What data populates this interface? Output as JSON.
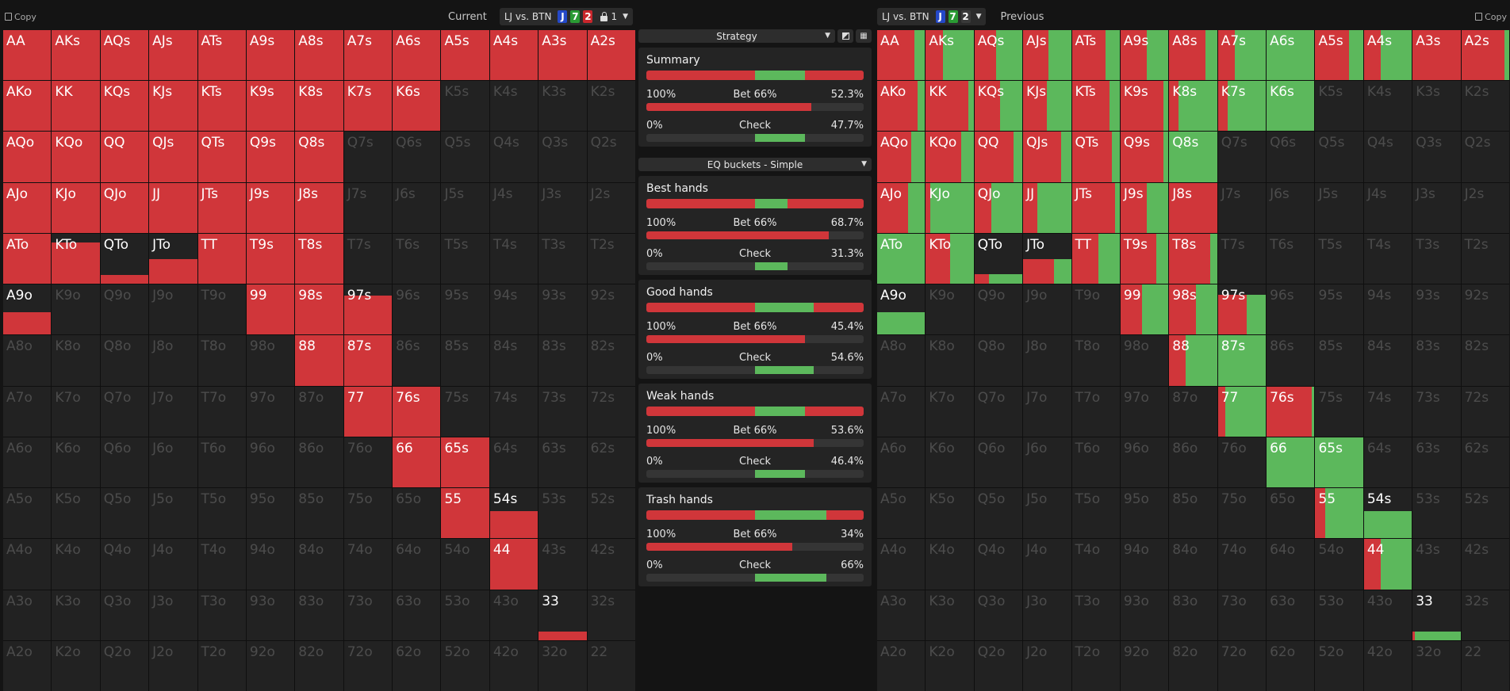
{
  "left": {
    "copy_label": "Copy",
    "mode_label": "Current",
    "spot": "LJ vs. BTN",
    "cards": [
      {
        "rank": "J",
        "color": "#2448c8"
      },
      {
        "rank": "7",
        "color": "#2a9a33"
      },
      {
        "rank": "2",
        "color": "#c8262c"
      }
    ],
    "lock_count": "1"
  },
  "right": {
    "copy_label": "Copy",
    "mode_label": "Previous",
    "spot": "LJ vs. BTN",
    "cards": [
      {
        "rank": "J",
        "color": "#2448c8"
      },
      {
        "rank": "7",
        "color": "#2a9a33"
      },
      {
        "rank": "2",
        "color": "#3a3a3a"
      }
    ]
  },
  "colors": {
    "bet": "#d0363a",
    "check": "#5cb85c",
    "empty": "#222222"
  },
  "strategy_dropdown": "Strategy",
  "buckets_dropdown": "EQ buckets - Simple",
  "panels": [
    {
      "title": "Summary",
      "stack": [
        0.5,
        0.23,
        0.27
      ],
      "bet_size": "100%",
      "bet_label": "Bet 66%",
      "bet_value": "52.3%",
      "bet_fill": 0.76,
      "check_size": "0%",
      "check_label": "Check",
      "check_value": "47.7%",
      "check_fill": [
        0.5,
        0.73
      ]
    },
    {
      "title": "Best hands",
      "stack": [
        0.5,
        0.15,
        0.35
      ],
      "bet_size": "100%",
      "bet_label": "Bet 66%",
      "bet_value": "68.7%",
      "bet_fill": 0.84,
      "check_size": "0%",
      "check_label": "Check",
      "check_value": "31.3%",
      "check_fill": [
        0.5,
        0.65
      ]
    },
    {
      "title": "Good hands",
      "stack": [
        0.5,
        0.27,
        0.23
      ],
      "bet_size": "100%",
      "bet_label": "Bet 66%",
      "bet_value": "45.4%",
      "bet_fill": 0.73,
      "check_size": "0%",
      "check_label": "Check",
      "check_value": "54.6%",
      "check_fill": [
        0.5,
        0.77
      ]
    },
    {
      "title": "Weak hands",
      "stack": [
        0.5,
        0.23,
        0.27
      ],
      "bet_size": "100%",
      "bet_label": "Bet 66%",
      "bet_value": "53.6%",
      "bet_fill": 0.77,
      "check_size": "0%",
      "check_label": "Check",
      "check_value": "46.4%",
      "check_fill": [
        0.5,
        0.73
      ]
    },
    {
      "title": "Trash hands",
      "stack": [
        0.5,
        0.33,
        0.17
      ],
      "bet_size": "100%",
      "bet_label": "Bet 66%",
      "bet_value": "34%",
      "bet_fill": 0.67,
      "check_size": "0%",
      "check_label": "Check",
      "check_value": "66%",
      "check_fill": [
        0.5,
        0.83
      ]
    }
  ],
  "hands": [
    [
      "AA",
      "AKs",
      "AQs",
      "AJs",
      "ATs",
      "A9s",
      "A8s",
      "A7s",
      "A6s",
      "A5s",
      "A4s",
      "A3s",
      "A2s"
    ],
    [
      "AKo",
      "KK",
      "KQs",
      "KJs",
      "KTs",
      "K9s",
      "K8s",
      "K7s",
      "K6s",
      "K5s",
      "K4s",
      "K3s",
      "K2s"
    ],
    [
      "AQo",
      "KQo",
      "QQ",
      "QJs",
      "QTs",
      "Q9s",
      "Q8s",
      "Q7s",
      "Q6s",
      "Q5s",
      "Q4s",
      "Q3s",
      "Q2s"
    ],
    [
      "AJo",
      "KJo",
      "QJo",
      "JJ",
      "JTs",
      "J9s",
      "J8s",
      "J7s",
      "J6s",
      "J5s",
      "J4s",
      "J3s",
      "J2s"
    ],
    [
      "ATo",
      "KTo",
      "QTo",
      "JTo",
      "TT",
      "T9s",
      "T8s",
      "T7s",
      "T6s",
      "T5s",
      "T4s",
      "T3s",
      "T2s"
    ],
    [
      "A9o",
      "K9o",
      "Q9o",
      "J9o",
      "T9o",
      "99",
      "98s",
      "97s",
      "96s",
      "95s",
      "94s",
      "93s",
      "92s"
    ],
    [
      "A8o",
      "K8o",
      "Q8o",
      "J8o",
      "T8o",
      "98o",
      "88",
      "87s",
      "86s",
      "85s",
      "84s",
      "83s",
      "82s"
    ],
    [
      "A7o",
      "K7o",
      "Q7o",
      "J7o",
      "T7o",
      "97o",
      "87o",
      "77",
      "76s",
      "75s",
      "74s",
      "73s",
      "72s"
    ],
    [
      "A6o",
      "K6o",
      "Q6o",
      "J6o",
      "T6o",
      "96o",
      "86o",
      "76o",
      "66",
      "65s",
      "64s",
      "63s",
      "62s"
    ],
    [
      "A5o",
      "K5o",
      "Q5o",
      "J5o",
      "T5o",
      "95o",
      "85o",
      "75o",
      "65o",
      "55",
      "54s",
      "53s",
      "52s"
    ],
    [
      "A4o",
      "K4o",
      "Q4o",
      "J4o",
      "T4o",
      "94o",
      "84o",
      "74o",
      "64o",
      "54o",
      "44",
      "43s",
      "42s"
    ],
    [
      "A3o",
      "K3o",
      "Q3o",
      "J3o",
      "T3o",
      "93o",
      "83o",
      "73o",
      "63o",
      "53o",
      "43o",
      "33",
      "32s"
    ],
    [
      "A2o",
      "K2o",
      "Q2o",
      "J2o",
      "T2o",
      "92o",
      "82o",
      "72o",
      "62o",
      "52o",
      "42o",
      "32o",
      "22"
    ]
  ],
  "current_height": [
    [
      1,
      1,
      1,
      1,
      1,
      1,
      1,
      1,
      1,
      1,
      1,
      1,
      1
    ],
    [
      1,
      1,
      1,
      1,
      1,
      1,
      1,
      1,
      1,
      0,
      0,
      0,
      0
    ],
    [
      1,
      1,
      1,
      1,
      1,
      1,
      1,
      0,
      0,
      0,
      0,
      0,
      0
    ],
    [
      1,
      1,
      1,
      1,
      1,
      1,
      1,
      0,
      0,
      0,
      0,
      0,
      0
    ],
    [
      1,
      0.83,
      0.17,
      0.5,
      1,
      1,
      1,
      0,
      0,
      0,
      0,
      0,
      0
    ],
    [
      0.45,
      0,
      0,
      0,
      0,
      1,
      1,
      0.78,
      0,
      0,
      0,
      0,
      0
    ],
    [
      0,
      0,
      0,
      0,
      0,
      0,
      1,
      1,
      0,
      0,
      0,
      0,
      0
    ],
    [
      0,
      0,
      0,
      0,
      0,
      0,
      0,
      1,
      1,
      0,
      0,
      0,
      0
    ],
    [
      0,
      0,
      0,
      0,
      0,
      0,
      0,
      0,
      1,
      1,
      0,
      0,
      0
    ],
    [
      0,
      0,
      0,
      0,
      0,
      0,
      0,
      0,
      0,
      1,
      0.55,
      0,
      0
    ],
    [
      0,
      0,
      0,
      0,
      0,
      0,
      0,
      0,
      0,
      0,
      1,
      0,
      0
    ],
    [
      0,
      0,
      0,
      0,
      0,
      0,
      0,
      0,
      0,
      0,
      0,
      0.17,
      0
    ],
    [
      0,
      0,
      0,
      0,
      0,
      0,
      0,
      0,
      0,
      0,
      0,
      0,
      0
    ]
  ],
  "previous_cells": [
    [
      [
        0.78,
        1
      ],
      [
        0.35,
        1
      ],
      [
        0.45,
        1
      ],
      [
        0.53,
        1
      ],
      [
        0.7,
        1
      ],
      [
        0.55,
        1
      ],
      [
        0.75,
        1
      ],
      [
        0.35,
        1
      ],
      [
        0,
        1
      ],
      [
        0.7,
        1
      ],
      [
        0.35,
        1
      ],
      [
        1,
        1
      ],
      [
        0.9,
        1
      ]
    ],
    [
      [
        0.84,
        1
      ],
      [
        0.88,
        1
      ],
      [
        0.53,
        1
      ],
      [
        0.5,
        1
      ],
      [
        0.78,
        1
      ],
      [
        0.9,
        1
      ],
      [
        0.2,
        1
      ],
      [
        0.2,
        1
      ],
      [
        0,
        1
      ],
      [
        0,
        0
      ],
      [
        0,
        0
      ],
      [
        0,
        0
      ],
      [
        0,
        0
      ]
    ],
    [
      [
        0.72,
        1
      ],
      [
        0.74,
        1
      ],
      [
        0.82,
        1
      ],
      [
        0.8,
        1
      ],
      [
        0.84,
        1
      ],
      [
        0.9,
        1
      ],
      [
        0,
        1
      ],
      [
        0,
        0
      ],
      [
        0,
        0
      ],
      [
        0,
        0
      ],
      [
        0,
        0
      ],
      [
        0,
        0
      ],
      [
        0,
        0
      ]
    ],
    [
      [
        0.65,
        1
      ],
      [
        0.1,
        1
      ],
      [
        0.35,
        1
      ],
      [
        0.3,
        1
      ],
      [
        0.9,
        1
      ],
      [
        0.55,
        1
      ],
      [
        1,
        1
      ],
      [
        0,
        0
      ],
      [
        0,
        0
      ],
      [
        0,
        0
      ],
      [
        0,
        0
      ],
      [
        0,
        0
      ],
      [
        0,
        0
      ]
    ],
    [
      [
        0,
        1
      ],
      [
        0.5,
        1
      ],
      [
        0.3,
        0.2
      ],
      [
        0.65,
        0.5
      ],
      [
        0.55,
        1
      ],
      [
        0.75,
        1
      ],
      [
        0.85,
        1
      ],
      [
        0,
        0
      ],
      [
        0,
        0
      ],
      [
        0,
        0
      ],
      [
        0,
        0
      ],
      [
        0,
        0
      ],
      [
        0,
        0
      ]
    ],
    [
      [
        0,
        0.45
      ],
      [
        0,
        0
      ],
      [
        0,
        0
      ],
      [
        0,
        0
      ],
      [
        0,
        0
      ],
      [
        0.45,
        1
      ],
      [
        0.55,
        1
      ],
      [
        0.6,
        0.8
      ],
      [
        0,
        0
      ],
      [
        0,
        0
      ],
      [
        0,
        0
      ],
      [
        0,
        0
      ],
      [
        0,
        0
      ]
    ],
    [
      [
        0,
        0
      ],
      [
        0,
        0
      ],
      [
        0,
        0
      ],
      [
        0,
        0
      ],
      [
        0,
        0
      ],
      [
        0,
        0
      ],
      [
        0.35,
        1
      ],
      [
        0,
        1
      ],
      [
        0,
        0
      ],
      [
        0,
        0
      ],
      [
        0,
        0
      ],
      [
        0,
        0
      ],
      [
        0,
        0
      ]
    ],
    [
      [
        0,
        0
      ],
      [
        0,
        0
      ],
      [
        0,
        0
      ],
      [
        0,
        0
      ],
      [
        0,
        0
      ],
      [
        0,
        0
      ],
      [
        0,
        0
      ],
      [
        0.15,
        1
      ],
      [
        0.95,
        1
      ],
      [
        0,
        0
      ],
      [
        0,
        0
      ],
      [
        0,
        0
      ],
      [
        0,
        0
      ]
    ],
    [
      [
        0,
        0
      ],
      [
        0,
        0
      ],
      [
        0,
        0
      ],
      [
        0,
        0
      ],
      [
        0,
        0
      ],
      [
        0,
        0
      ],
      [
        0,
        0
      ],
      [
        0,
        0
      ],
      [
        0,
        1
      ],
      [
        0,
        1
      ],
      [
        0,
        0
      ],
      [
        0,
        0
      ],
      [
        0,
        0
      ]
    ],
    [
      [
        0,
        0
      ],
      [
        0,
        0
      ],
      [
        0,
        0
      ],
      [
        0,
        0
      ],
      [
        0,
        0
      ],
      [
        0,
        0
      ],
      [
        0,
        0
      ],
      [
        0,
        0
      ],
      [
        0,
        0
      ],
      [
        0.2,
        1
      ],
      [
        0,
        0.55
      ],
      [
        0,
        0
      ],
      [
        0,
        0
      ]
    ],
    [
      [
        0,
        0
      ],
      [
        0,
        0
      ],
      [
        0,
        0
      ],
      [
        0,
        0
      ],
      [
        0,
        0
      ],
      [
        0,
        0
      ],
      [
        0,
        0
      ],
      [
        0,
        0
      ],
      [
        0,
        0
      ],
      [
        0,
        0
      ],
      [
        0.35,
        1
      ],
      [
        0,
        0
      ],
      [
        0,
        0
      ]
    ],
    [
      [
        0,
        0
      ],
      [
        0,
        0
      ],
      [
        0,
        0
      ],
      [
        0,
        0
      ],
      [
        0,
        0
      ],
      [
        0,
        0
      ],
      [
        0,
        0
      ],
      [
        0,
        0
      ],
      [
        0,
        0
      ],
      [
        0,
        0
      ],
      [
        0,
        0
      ],
      [
        0.05,
        0.17
      ],
      [
        0,
        0
      ]
    ],
    [
      [
        0,
        0
      ],
      [
        0,
        0
      ],
      [
        0,
        0
      ],
      [
        0,
        0
      ],
      [
        0,
        0
      ],
      [
        0,
        0
      ],
      [
        0,
        0
      ],
      [
        0,
        0
      ],
      [
        0,
        0
      ],
      [
        0,
        0
      ],
      [
        0,
        0
      ],
      [
        0,
        0
      ],
      [
        0,
        0
      ]
    ]
  ]
}
